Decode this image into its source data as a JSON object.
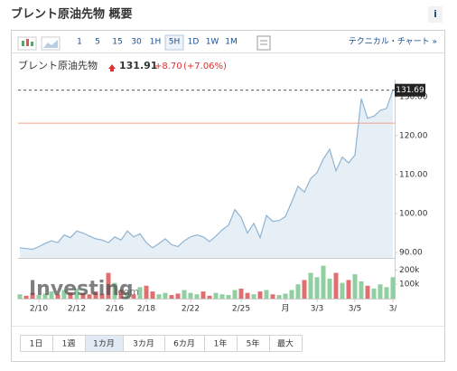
{
  "header": {
    "title": "ブレント原油先物 概要",
    "info": "i"
  },
  "toolbar": {
    "intervals": [
      "1",
      "5",
      "15",
      "30",
      "1H",
      "5H",
      "1D",
      "1W",
      "1M"
    ],
    "selected_index": 5,
    "link": "テクニカル・チャート »"
  },
  "quote": {
    "name": "ブレント原油先物",
    "price": "131.91",
    "change": "+8.70",
    "change_pct": "(+7.06%)"
  },
  "watermark": {
    "brand": "Investing",
    "suffix": ".com"
  },
  "ranges": {
    "items": [
      "1日",
      "1週",
      "1カ月",
      "3カ月",
      "6カ月",
      "1年",
      "5年",
      "最大"
    ],
    "selected_index": 2
  },
  "chart_data": {
    "type": "line",
    "x": [
      0,
      1,
      2,
      3,
      4,
      5,
      6,
      7,
      8,
      9,
      10,
      11,
      12,
      13,
      14,
      15,
      16,
      17,
      18,
      19,
      20,
      21,
      22,
      23,
      24,
      25,
      26,
      27,
      28,
      29,
      30,
      31,
      32,
      33,
      34,
      35,
      36,
      37,
      38,
      39,
      40,
      41,
      42,
      43,
      44,
      45,
      46,
      47,
      48,
      49,
      50,
      51,
      52,
      53,
      54,
      55,
      56,
      57,
      58,
      59
    ],
    "values": [
      91.2,
      91,
      90.8,
      91.5,
      92.3,
      93,
      92.5,
      94.5,
      93.8,
      95.5,
      95,
      94.2,
      93.5,
      93.2,
      92.5,
      94,
      93.2,
      95.5,
      94,
      94.8,
      92.5,
      91.2,
      92.3,
      93.5,
      92,
      91.5,
      93,
      94,
      94.5,
      94,
      92.8,
      94.2,
      95.8,
      97,
      101,
      99,
      95,
      97.5,
      93.8,
      99.5,
      98,
      98.2,
      99.2,
      103,
      107,
      105.5,
      109,
      110.5,
      114,
      116.5,
      111,
      114.5,
      113,
      115,
      129.5,
      124.5,
      125,
      126.5,
      127,
      131.7
    ],
    "color": "#8fb3d3",
    "fill": "#e6eef6",
    "xlim": [
      0,
      59
    ],
    "ylim": [
      88.6,
      134.4
    ],
    "yticks": [
      {
        "value": 90,
        "label": "90.00"
      },
      {
        "value": 100,
        "label": "100.00"
      },
      {
        "value": 110,
        "label": "110.00"
      },
      {
        "value": 120,
        "label": "120.00"
      },
      {
        "value": 130,
        "label": "130.00"
      }
    ],
    "xticks": [
      {
        "value": 3,
        "label": "2/10"
      },
      {
        "value": 9,
        "label": "2/12"
      },
      {
        "value": 15,
        "label": "2/16"
      },
      {
        "value": 20,
        "label": "2/18"
      },
      {
        "value": 27,
        "label": "2/22"
      },
      {
        "value": 35,
        "label": "2/25"
      },
      {
        "value": 42,
        "label": "月"
      },
      {
        "value": 47,
        "label": "3/3"
      },
      {
        "value": 53,
        "label": "3/5"
      },
      {
        "value": 59,
        "label": "3/"
      }
    ],
    "last_price": 131.69,
    "prev_close": 123.21,
    "prev_close_color": "#f0a58a",
    "volume": {
      "values": [
        30000,
        20000,
        40000,
        25000,
        35000,
        50000,
        30000,
        60000,
        45000,
        70000,
        40000,
        30000,
        50000,
        35000,
        180000,
        110000,
        60000,
        40000,
        30000,
        80000,
        90000,
        50000,
        30000,
        40000,
        25000,
        35000,
        60000,
        40000,
        30000,
        50000,
        20000,
        40000,
        30000,
        25000,
        60000,
        70000,
        40000,
        30000,
        50000,
        60000,
        30000,
        25000,
        35000,
        60000,
        100000,
        130000,
        180000,
        150000,
        230000,
        140000,
        180000,
        110000,
        130000,
        170000,
        120000,
        90000,
        70000,
        100000,
        80000,
        150000
      ],
      "ylim": [
        0,
        253000
      ],
      "yticks": [
        {
          "value": 100000,
          "label": "100k"
        },
        {
          "value": 200000,
          "label": "200k"
        }
      ],
      "up_color": "#8fcfa2",
      "down_color": "#e07070"
    }
  }
}
